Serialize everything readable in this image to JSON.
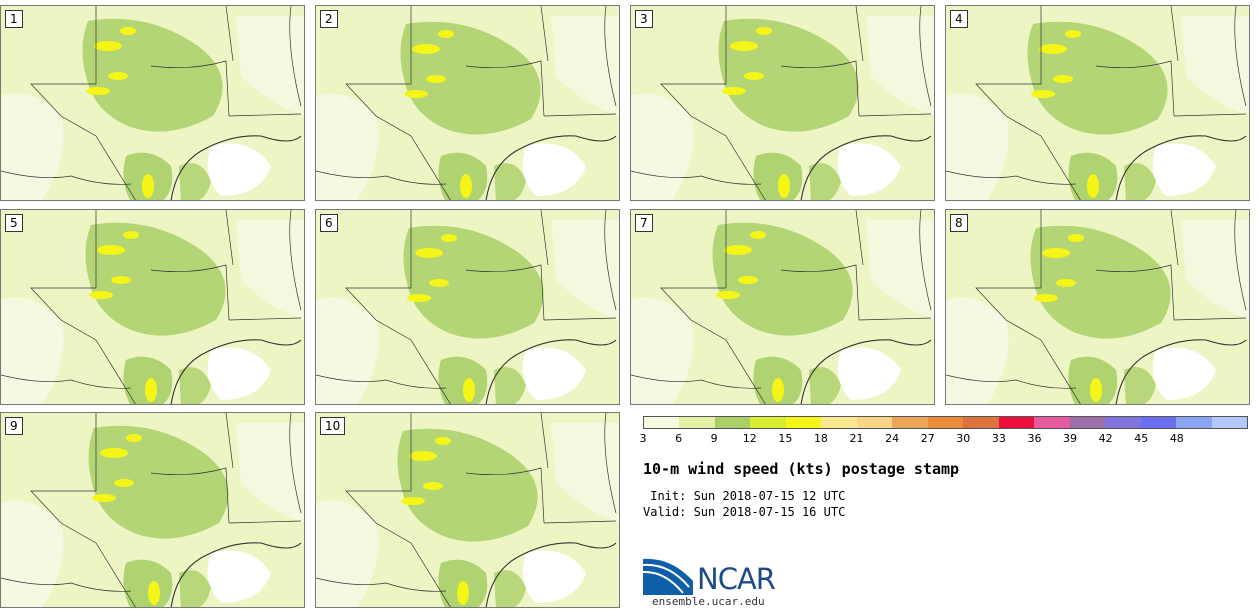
{
  "panels": [
    {
      "label": "1"
    },
    {
      "label": "2"
    },
    {
      "label": "3"
    },
    {
      "label": "4"
    },
    {
      "label": "5"
    },
    {
      "label": "6"
    },
    {
      "label": "7"
    },
    {
      "label": "8"
    },
    {
      "label": "9"
    },
    {
      "label": "10"
    }
  ],
  "colorbar": {
    "colors": [
      "#f7f9e0",
      "#e4f0a6",
      "#a9cf68",
      "#d9ec30",
      "#f5f517",
      "#fce98f",
      "#f7d587",
      "#eda558",
      "#e98c3a",
      "#dc733d",
      "#ea0f3b",
      "#e85aa0",
      "#9b6fa8",
      "#8073db",
      "#6a6ef0",
      "#8aa5f4",
      "#b4c8f7"
    ],
    "ticks": [
      "3",
      "6",
      "9",
      "12",
      "15",
      "18",
      "21",
      "24",
      "27",
      "30",
      "33",
      "36",
      "39",
      "42",
      "45",
      "48"
    ]
  },
  "title": "10-m wind speed (kts) postage stamp",
  "init": " Init: Sun 2018-07-15 12 UTC",
  "valid": "Valid: Sun 2018-07-15 16 UTC",
  "logo": {
    "text": "NCAR",
    "url": "ensemble.ucar.edu"
  }
}
